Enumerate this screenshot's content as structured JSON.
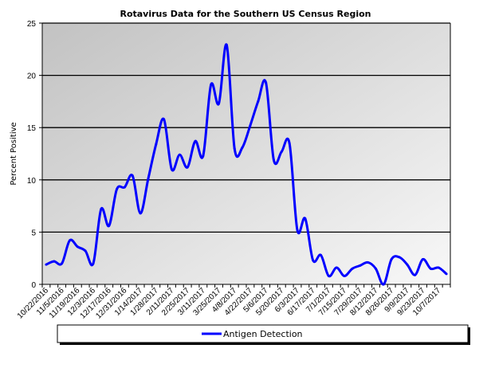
{
  "chart_data": {
    "type": "line",
    "title": "Rotavirus Data for the Southern US Census Region",
    "xlabel": "",
    "ylabel": "Percent Positive",
    "ylim": [
      0,
      25
    ],
    "yticks": [
      0,
      5,
      10,
      15,
      20,
      25
    ],
    "grid": true,
    "legend_placement": "bottom",
    "tick_labels": [
      "10/22/2016",
      "11/5/2016",
      "11/19/2016",
      "12/3/2016",
      "12/17/2016",
      "12/31/2016",
      "1/14/2017",
      "1/28/2017",
      "2/11/2017",
      "2/25/2017",
      "3/11/2017",
      "3/25/2017",
      "4/8/2017",
      "4/22/2017",
      "5/6/2017",
      "5/20/2017",
      "6/3/2017",
      "6/17/2017",
      "7/1/2017",
      "7/15/2017",
      "7/29/2017",
      "8/12/2017",
      "8/26/2017",
      "9/9/2017",
      "9/23/2017",
      "10/7/2017"
    ],
    "series": [
      {
        "name": "Antigen Detection",
        "color": "#0000ff",
        "values": [
          1.9,
          2.2,
          2.0,
          4.2,
          3.6,
          3.2,
          2.0,
          7.2,
          5.6,
          9.1,
          9.3,
          10.4,
          6.8,
          10.1,
          13.4,
          15.8,
          11.0,
          12.4,
          11.2,
          13.7,
          12.3,
          19.1,
          17.3,
          22.9,
          13.0,
          13.1,
          15.2,
          17.5,
          19.3,
          11.9,
          12.7,
          13.5,
          5.2,
          6.3,
          2.3,
          2.8,
          0.8,
          1.6,
          0.8,
          1.5,
          1.8,
          2.1,
          1.5,
          0.0,
          2.4,
          2.6,
          1.9,
          0.9,
          2.4,
          1.5,
          1.6,
          1.0
        ]
      }
    ]
  }
}
